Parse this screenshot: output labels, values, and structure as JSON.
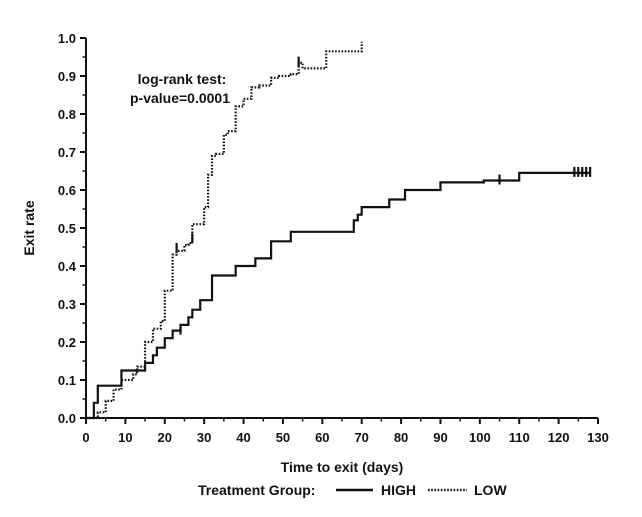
{
  "chart_data": {
    "type": "line",
    "title": "",
    "xlabel": "Time to exit (days)",
    "ylabel": "Exit rate",
    "xlim": [
      0,
      130
    ],
    "ylim": [
      0,
      1.0
    ],
    "x_ticks": [
      0,
      10,
      20,
      30,
      40,
      50,
      60,
      70,
      80,
      90,
      100,
      110,
      120,
      130
    ],
    "y_ticks": [
      0.0,
      0.1,
      0.2,
      0.3,
      0.4,
      0.5,
      0.6,
      0.7,
      0.8,
      0.9,
      1.0
    ],
    "y_tick_labels": [
      "0.0",
      "0.1",
      "0.2",
      "0.3",
      "0.4",
      "0.5",
      "0.6",
      "0.7",
      "0.8",
      "0.9",
      "1.0"
    ],
    "grid": false,
    "annotation": [
      "log-rank test:",
      "p-value=0.0001"
    ],
    "legend": {
      "title": "Treatment Group:",
      "placement": "bottom"
    },
    "series": [
      {
        "name": "HIGH",
        "style": "solid",
        "color": "#111111",
        "x": [
          0,
          2,
          3,
          9,
          15,
          17,
          18,
          20,
          22,
          24,
          26,
          27,
          29,
          32,
          38,
          43,
          47,
          52,
          68,
          69,
          70,
          77,
          81,
          90,
          101,
          110,
          128
        ],
        "y": [
          0,
          0.04,
          0.085,
          0.125,
          0.145,
          0.165,
          0.185,
          0.21,
          0.23,
          0.245,
          0.265,
          0.285,
          0.31,
          0.375,
          0.4,
          0.42,
          0.465,
          0.49,
          0.52,
          0.535,
          0.555,
          0.575,
          0.6,
          0.62,
          0.625,
          0.645,
          0.645
        ],
        "censored_x": [
          24,
          105,
          124,
          125,
          126,
          127,
          128
        ],
        "censored_y": [
          0.23,
          0.625,
          0.645,
          0.645,
          0.645,
          0.645,
          0.645
        ]
      },
      {
        "name": "LOW",
        "style": "dotted",
        "color": "#111111",
        "x": [
          0,
          3,
          5,
          7,
          9,
          12,
          13,
          15,
          17,
          19,
          20,
          22,
          23,
          25,
          26,
          27,
          30,
          31,
          32,
          33,
          35,
          36,
          38,
          40,
          42,
          44,
          47,
          49,
          52,
          54,
          55,
          61,
          68,
          70
        ],
        "y": [
          0,
          0.015,
          0.045,
          0.075,
          0.1,
          0.115,
          0.135,
          0.2,
          0.235,
          0.255,
          0.335,
          0.43,
          0.44,
          0.455,
          0.46,
          0.51,
          0.555,
          0.64,
          0.69,
          0.695,
          0.745,
          0.755,
          0.82,
          0.84,
          0.87,
          0.875,
          0.895,
          0.9,
          0.905,
          0.935,
          0.92,
          0.965,
          0.965,
          0.99
        ],
        "censored_x": [
          23,
          27,
          54
        ],
        "censored_y": [
          0.445,
          0.47,
          0.935
        ]
      }
    ]
  }
}
